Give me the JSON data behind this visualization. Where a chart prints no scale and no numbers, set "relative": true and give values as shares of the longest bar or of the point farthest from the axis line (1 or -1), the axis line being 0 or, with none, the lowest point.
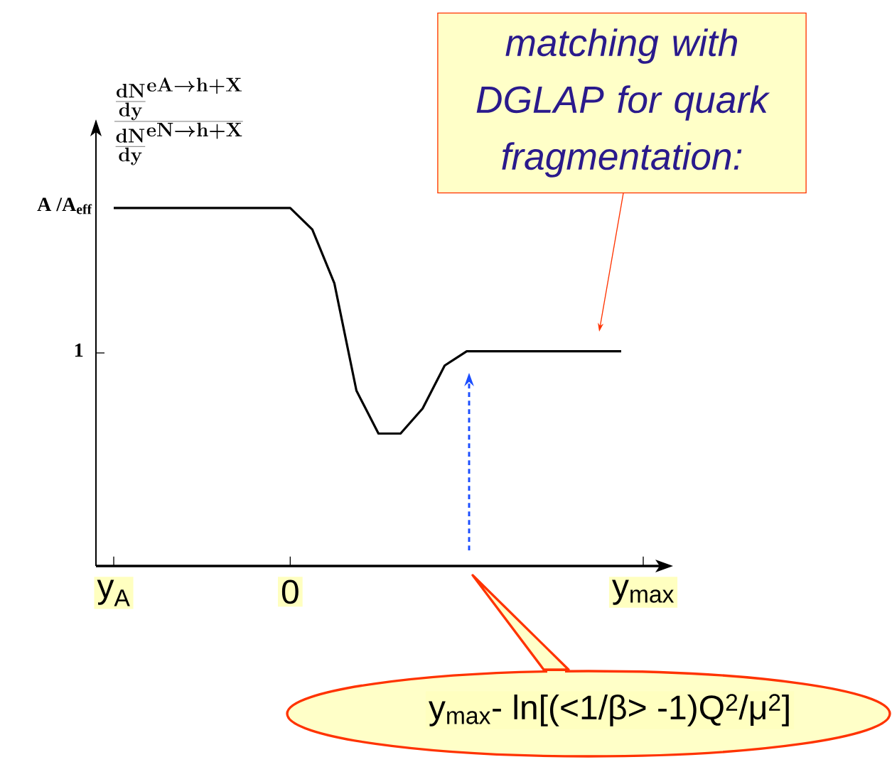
{
  "chart_data": {
    "type": "line",
    "ylabel": "\\frac{\\frac{\\mathbf{dN}}{\\mathbf{dy}}^{\\mathbf{eA}\\to\\mathbf{h+X}}}{\\frac{\\mathbf{dN}}{\\mathbf{dy}}^{\\mathbf{eN}\\to\\mathbf{h+X}}}",
    "relative": true,
    "line_style": "solid",
    "categories": [
      "y$_{A}$",
      null,
      null,
      null,
      null,
      null,
      null,
      null,
      "0",
      null,
      null,
      null,
      null,
      null,
      null,
      null,
      null,
      null,
      null,
      null,
      null,
      null,
      null,
      null,
      "y$_{max}$"
    ],
    "series": [
      {
        "color": "#000000",
        "values": [
          1,
          1,
          1,
          1,
          1,
          1,
          1,
          1,
          1,
          0.94,
          0.79,
          0.49,
          0.37,
          0.37,
          0.44,
          0.56,
          0.6,
          0.6,
          0.6,
          0.6,
          0.6,
          0.6,
          0.6,
          0.6,
          null
        ]
      }
    ],
    "annotations": [
      "A /A$_{eff}$",
      "1",
      "matching with DGLAP for quark fragmentation:",
      "y$_{max}$- ln[(<1/β> -1)Q$^{2}$/μ$^{2}$]"
    ]
  }
}
